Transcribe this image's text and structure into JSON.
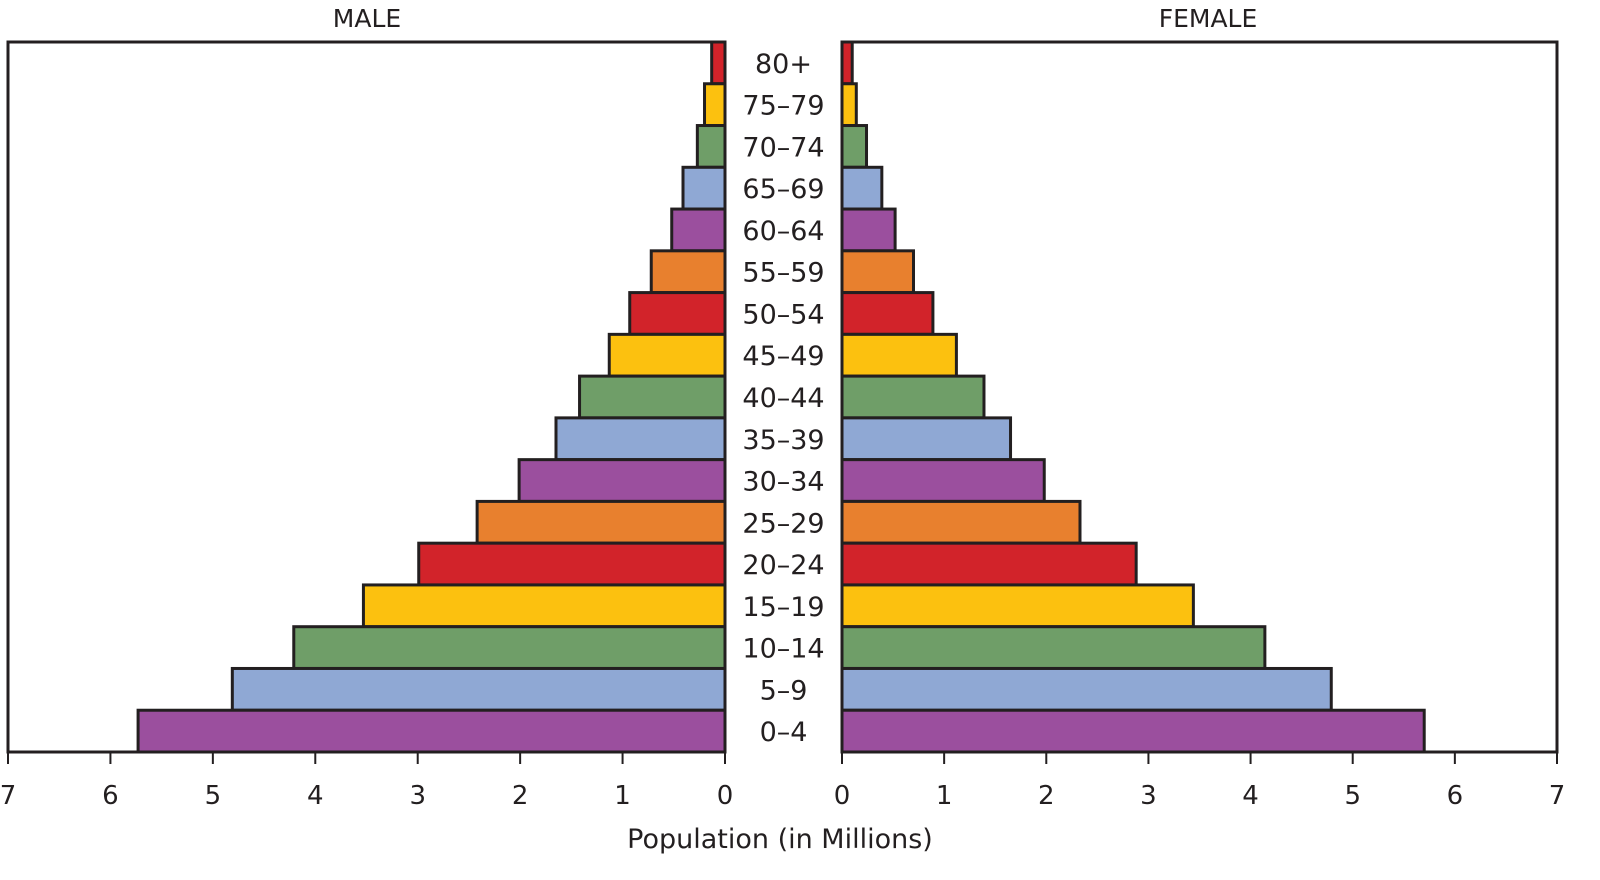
{
  "chart_data": {
    "type": "bar",
    "subtype": "population-pyramid",
    "panels": [
      "MALE",
      "FEMALE"
    ],
    "xlabel": "Population (in Millions)",
    "xlim": [
      0,
      7
    ],
    "xticks": [
      0,
      1,
      2,
      3,
      4,
      5,
      6,
      7
    ],
    "categories": [
      "80+",
      "75–79",
      "70–74",
      "65–69",
      "60–64",
      "55–59",
      "50–54",
      "45–49",
      "40–44",
      "35–39",
      "30–34",
      "25–29",
      "20–24",
      "15–19",
      "10–14",
      "5–9",
      "0–4"
    ],
    "series": [
      {
        "name": "MALE",
        "values": [
          0.13,
          0.2,
          0.27,
          0.41,
          0.52,
          0.72,
          0.93,
          1.13,
          1.42,
          1.65,
          2.01,
          2.42,
          2.99,
          3.53,
          4.21,
          4.81,
          5.73
        ]
      },
      {
        "name": "FEMALE",
        "values": [
          0.1,
          0.14,
          0.24,
          0.39,
          0.52,
          0.7,
          0.89,
          1.12,
          1.39,
          1.65,
          1.98,
          2.33,
          2.88,
          3.44,
          4.14,
          4.79,
          5.7
        ]
      }
    ],
    "bar_colors": [
      "#d2232a",
      "#fcc10f",
      "#6f9e68",
      "#8fa8d4",
      "#9b4f9e",
      "#e8802e",
      "#d2232a",
      "#fcc10f",
      "#6f9e68",
      "#8fa8d4",
      "#9b4f9e",
      "#e8802e",
      "#d2232a",
      "#fcc10f",
      "#6f9e68",
      "#8fa8d4",
      "#9b4f9e"
    ],
    "grid": false
  }
}
